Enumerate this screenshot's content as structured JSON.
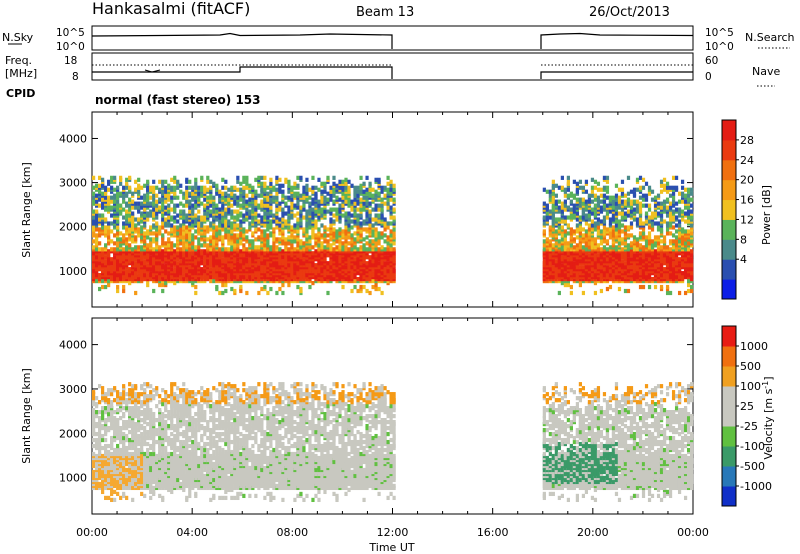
{
  "header": {
    "station": "Hankasalmi (fitACF)",
    "beam": "Beam 13",
    "date": "26/Oct/2013"
  },
  "nsky_panel": {
    "left_label": "N.Sky",
    "right_label": "N.Search",
    "left_ticks": [
      "10^5",
      "10^0"
    ],
    "right_ticks": [
      "10^5",
      "10^0"
    ]
  },
  "freq_panel": {
    "left_label_1": "Freq.",
    "left_label_2": "[MHz]",
    "right_label": "Nave",
    "left_ticks": [
      "18",
      "8"
    ],
    "right_ticks": [
      "60",
      "0"
    ]
  },
  "cpid": {
    "label": "CPID",
    "mode": "normal (fast stereo) 153"
  },
  "time_axis": {
    "label": "Time UT",
    "ticks": [
      "00:00",
      "04:00",
      "08:00",
      "12:00",
      "16:00",
      "20:00",
      "00:00"
    ]
  },
  "chart_data": [
    {
      "type": "heatmap",
      "title": "",
      "xlabel": "Time UT",
      "ylabel": "Slant Range [km]",
      "ylim": [
        180,
        4600
      ],
      "y_ticks": [
        "1000",
        "2000",
        "3000",
        "4000"
      ],
      "y_tick_values": [
        1000,
        2000,
        3000,
        4000
      ],
      "x_ticks": [
        "00:00",
        "04:00",
        "08:00",
        "12:00",
        "16:00",
        "20:00",
        "00:00"
      ],
      "data_gap": {
        "start": "12:00",
        "end": "18:00"
      },
      "colorbar": {
        "label": "Power [dB]",
        "ticks": [
          "4",
          "8",
          "12",
          "16",
          "20",
          "24",
          "28"
        ],
        "colors": [
          "#0c1ee6",
          "#2a4fb0",
          "#4a8a8a",
          "#5ab35a",
          "#f0c020",
          "#f59a16",
          "#f07010",
          "#ea3a10",
          "#e41c14"
        ]
      }
    },
    {
      "type": "heatmap",
      "title": "",
      "xlabel": "Time UT",
      "ylabel": "Slant Range [km]",
      "ylim": [
        180,
        4600
      ],
      "y_ticks": [
        "1000",
        "2000",
        "3000",
        "4000"
      ],
      "y_tick_values": [
        1000,
        2000,
        3000,
        4000
      ],
      "x_ticks": [
        "00:00",
        "04:00",
        "08:00",
        "12:00",
        "16:00",
        "20:00",
        "00:00"
      ],
      "data_gap": {
        "start": "12:00",
        "end": "18:00"
      },
      "colorbar": {
        "label": "Velocity [m s",
        "label_sup": "-1",
        "label_end": "]",
        "ticks": [
          "1000",
          "500",
          "100",
          "25",
          "-25",
          "-100",
          "-500",
          "-1000"
        ],
        "colors": [
          "#1030c8",
          "#2878b8",
          "#3a9a68",
          "#60c040",
          "#c8c8c0",
          "#c8c8c0",
          "#f0a020",
          "#f07010",
          "#e81c14"
        ]
      }
    }
  ]
}
